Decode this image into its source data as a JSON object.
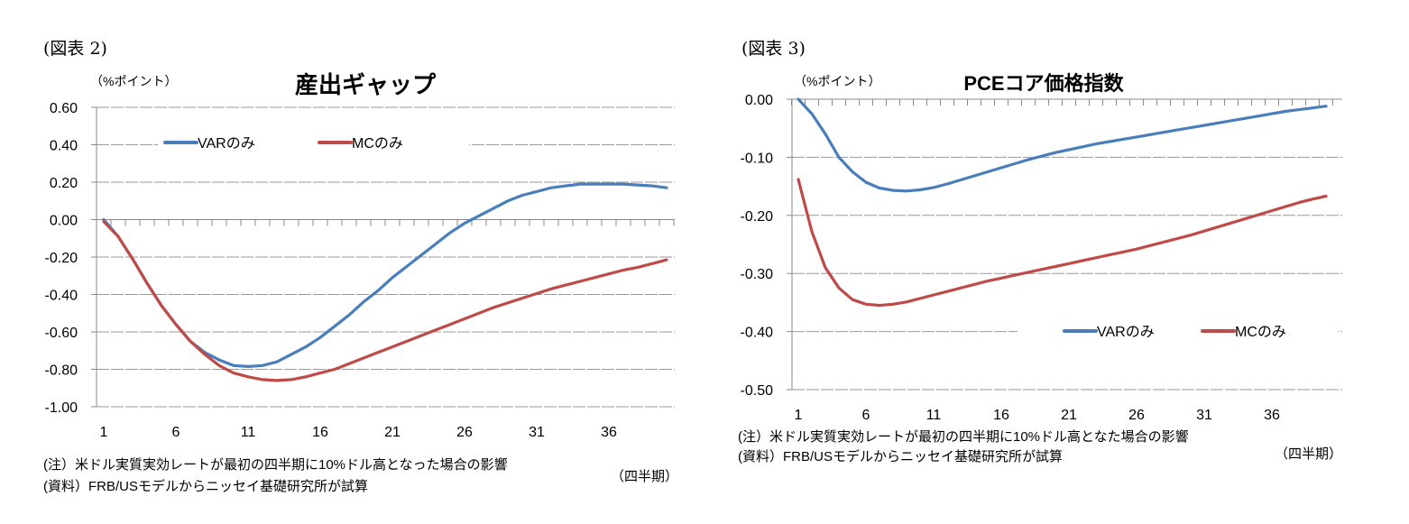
{
  "chart_data": [
    {
      "type": "line",
      "figure_label": "(図表 2)",
      "title": "産出ギャップ",
      "ylabel": "（%ポイント）",
      "xlabel": "（四半期）",
      "ylim": [
        -1.0,
        0.6
      ],
      "yticks": [
        "0.60",
        "0.40",
        "0.20",
        "0.00",
        "-0.20",
        "-0.40",
        "-0.60",
        "-0.80",
        "-1.00"
      ],
      "xticks": [
        "1",
        "6",
        "11",
        "16",
        "21",
        "26",
        "31",
        "36"
      ],
      "legend_position": "top-left",
      "grid": true,
      "note": "(注）米ドル実質実効レートが最初の四半期に10%ドル高となった場合の影響",
      "source": "(資料）FRB/USモデルからニッセイ基礎研究所が試算",
      "x": [
        1,
        2,
        3,
        4,
        5,
        6,
        7,
        8,
        9,
        10,
        11,
        12,
        13,
        14,
        15,
        16,
        17,
        18,
        19,
        20,
        21,
        22,
        23,
        24,
        25,
        26,
        27,
        28,
        29,
        30,
        31,
        32,
        33,
        34,
        35,
        36,
        37,
        38,
        39,
        40
      ],
      "series": [
        {
          "name": "VARのみ",
          "color": "#4a7ebb",
          "values": [
            0.0,
            -0.09,
            -0.21,
            -0.34,
            -0.46,
            -0.56,
            -0.65,
            -0.71,
            -0.75,
            -0.78,
            -0.785,
            -0.78,
            -0.76,
            -0.72,
            -0.68,
            -0.63,
            -0.57,
            -0.51,
            -0.44,
            -0.38,
            -0.31,
            -0.25,
            -0.19,
            -0.13,
            -0.07,
            -0.02,
            0.02,
            0.06,
            0.1,
            0.13,
            0.15,
            0.17,
            0.18,
            0.19,
            0.19,
            0.19,
            0.19,
            0.185,
            0.18,
            0.17
          ]
        },
        {
          "name": "MCのみ",
          "color": "#be4b48",
          "values": [
            -0.01,
            -0.09,
            -0.21,
            -0.34,
            -0.46,
            -0.56,
            -0.65,
            -0.72,
            -0.78,
            -0.82,
            -0.84,
            -0.855,
            -0.86,
            -0.855,
            -0.84,
            -0.82,
            -0.8,
            -0.77,
            -0.74,
            -0.71,
            -0.68,
            -0.65,
            -0.62,
            -0.59,
            -0.56,
            -0.53,
            -0.5,
            -0.47,
            -0.445,
            -0.42,
            -0.395,
            -0.37,
            -0.35,
            -0.33,
            -0.31,
            -0.29,
            -0.27,
            -0.255,
            -0.235,
            -0.215
          ]
        }
      ]
    },
    {
      "type": "line",
      "figure_label": "(図表 3)",
      "title": "PCEコア価格指数",
      "ylabel": "（%ポイント）",
      "xlabel": "（四半期）",
      "ylim": [
        -0.5,
        0.0
      ],
      "yticks": [
        "0.00",
        "-0.10",
        "-0.20",
        "-0.30",
        "-0.40",
        "-0.50"
      ],
      "xticks": [
        "1",
        "6",
        "11",
        "16",
        "21",
        "26",
        "31",
        "36"
      ],
      "legend_position": "bottom-right",
      "grid": true,
      "note": "(注）米ドル実質実効レートが最初の四半期に10%ドル高となた場合の影響",
      "source": "(資料）FRB/USモデルからニッセイ基礎研究所が試算",
      "x": [
        1,
        2,
        3,
        4,
        5,
        6,
        7,
        8,
        9,
        10,
        11,
        12,
        13,
        14,
        15,
        16,
        17,
        18,
        19,
        20,
        21,
        22,
        23,
        24,
        25,
        26,
        27,
        28,
        29,
        30,
        31,
        32,
        33,
        34,
        35,
        36,
        37,
        38,
        39,
        40
      ],
      "series": [
        {
          "name": "VARのみ",
          "color": "#4a7ebb",
          "values": [
            0.0,
            -0.025,
            -0.06,
            -0.1,
            -0.125,
            -0.143,
            -0.153,
            -0.157,
            -0.158,
            -0.156,
            -0.152,
            -0.146,
            -0.139,
            -0.132,
            -0.125,
            -0.118,
            -0.111,
            -0.104,
            -0.098,
            -0.092,
            -0.087,
            -0.082,
            -0.077,
            -0.073,
            -0.069,
            -0.065,
            -0.061,
            -0.057,
            -0.053,
            -0.049,
            -0.045,
            -0.041,
            -0.037,
            -0.033,
            -0.029,
            -0.025,
            -0.021,
            -0.018,
            -0.015,
            -0.012
          ]
        },
        {
          "name": "MCのみ",
          "color": "#be4b48",
          "values": [
            -0.138,
            -0.228,
            -0.29,
            -0.325,
            -0.345,
            -0.353,
            -0.355,
            -0.353,
            -0.349,
            -0.343,
            -0.337,
            -0.331,
            -0.325,
            -0.319,
            -0.313,
            -0.308,
            -0.303,
            -0.298,
            -0.293,
            -0.288,
            -0.283,
            -0.278,
            -0.273,
            -0.268,
            -0.263,
            -0.258,
            -0.252,
            -0.246,
            -0.24,
            -0.234,
            -0.227,
            -0.22,
            -0.213,
            -0.206,
            -0.199,
            -0.192,
            -0.185,
            -0.178,
            -0.172,
            -0.167
          ]
        }
      ]
    }
  ]
}
